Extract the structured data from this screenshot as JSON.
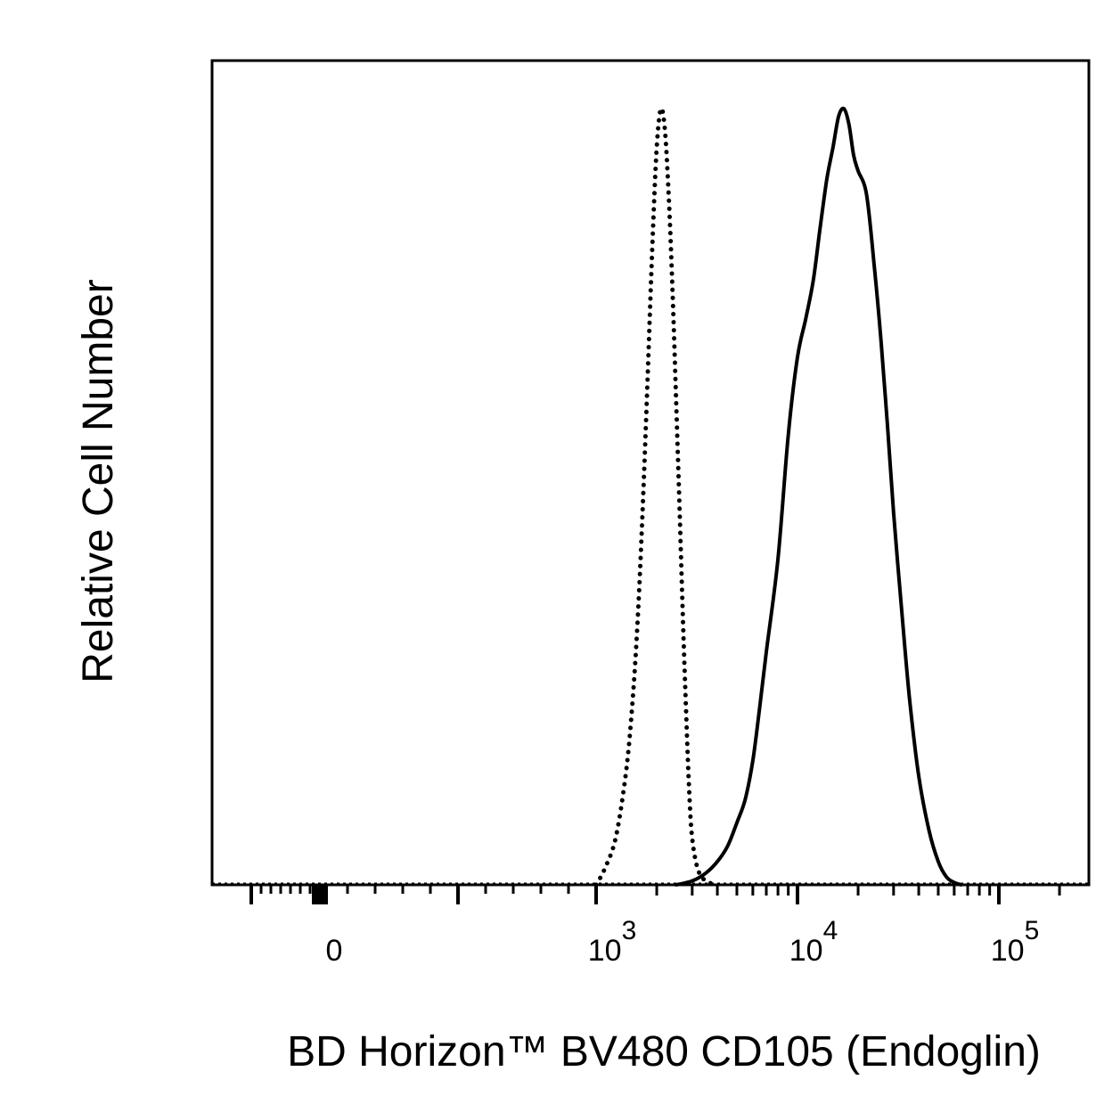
{
  "chart_data": {
    "type": "line",
    "title": "",
    "xlabel": "BD Horizon™ BV480 CD105 (Endoglin)",
    "ylabel": "Relative Cell Number",
    "x_scale": "biexponential",
    "xlim": [
      -700,
      200000
    ],
    "ylim": [
      0,
      100
    ],
    "grid": false,
    "legend": "none",
    "x_tick_labels": [
      {
        "value": 0,
        "base": "0",
        "exp": ""
      },
      {
        "value": 1000,
        "base": "10",
        "exp": "3"
      },
      {
        "value": 10000,
        "base": "10",
        "exp": "4"
      },
      {
        "value": 100000,
        "base": "10",
        "exp": "5"
      }
    ],
    "series": [
      {
        "style": "dotted",
        "color": "#000000",
        "x": [
          1000,
          1100,
          1250,
          1400,
          1500,
          1600,
          1700,
          1800,
          1900,
          2000,
          2100,
          2200,
          2300,
          2400,
          2500,
          2600,
          2700,
          2800,
          2900,
          3000,
          3200,
          3500,
          4000
        ],
        "y": [
          0,
          2,
          6,
          14,
          22,
          33,
          48,
          65,
          82,
          95,
          100,
          97,
          88,
          76,
          62,
          48,
          34,
          22,
          12,
          6,
          2,
          0.5,
          0
        ]
      },
      {
        "style": "solid",
        "color": "#000000",
        "x": [
          2500,
          3000,
          3500,
          4000,
          4500,
          5000,
          5500,
          6000,
          6500,
          7000,
          8000,
          9000,
          10000,
          11000,
          12000,
          13000,
          14000,
          15000,
          16000,
          17000,
          18000,
          19000,
          20000,
          22000,
          24000,
          26000,
          28000,
          30000,
          33000,
          36000,
          40000,
          45000,
          50000,
          55000,
          60000,
          65000
        ],
        "y": [
          0,
          0.5,
          1.5,
          3,
          5,
          8,
          11,
          16,
          23,
          30,
          42,
          58,
          68,
          73,
          78,
          85,
          91,
          95,
          99,
          100,
          98,
          94,
          92,
          89,
          80,
          70,
          59,
          48,
          35,
          24,
          14,
          7,
          3,
          1,
          0.3,
          0
        ]
      }
    ]
  }
}
